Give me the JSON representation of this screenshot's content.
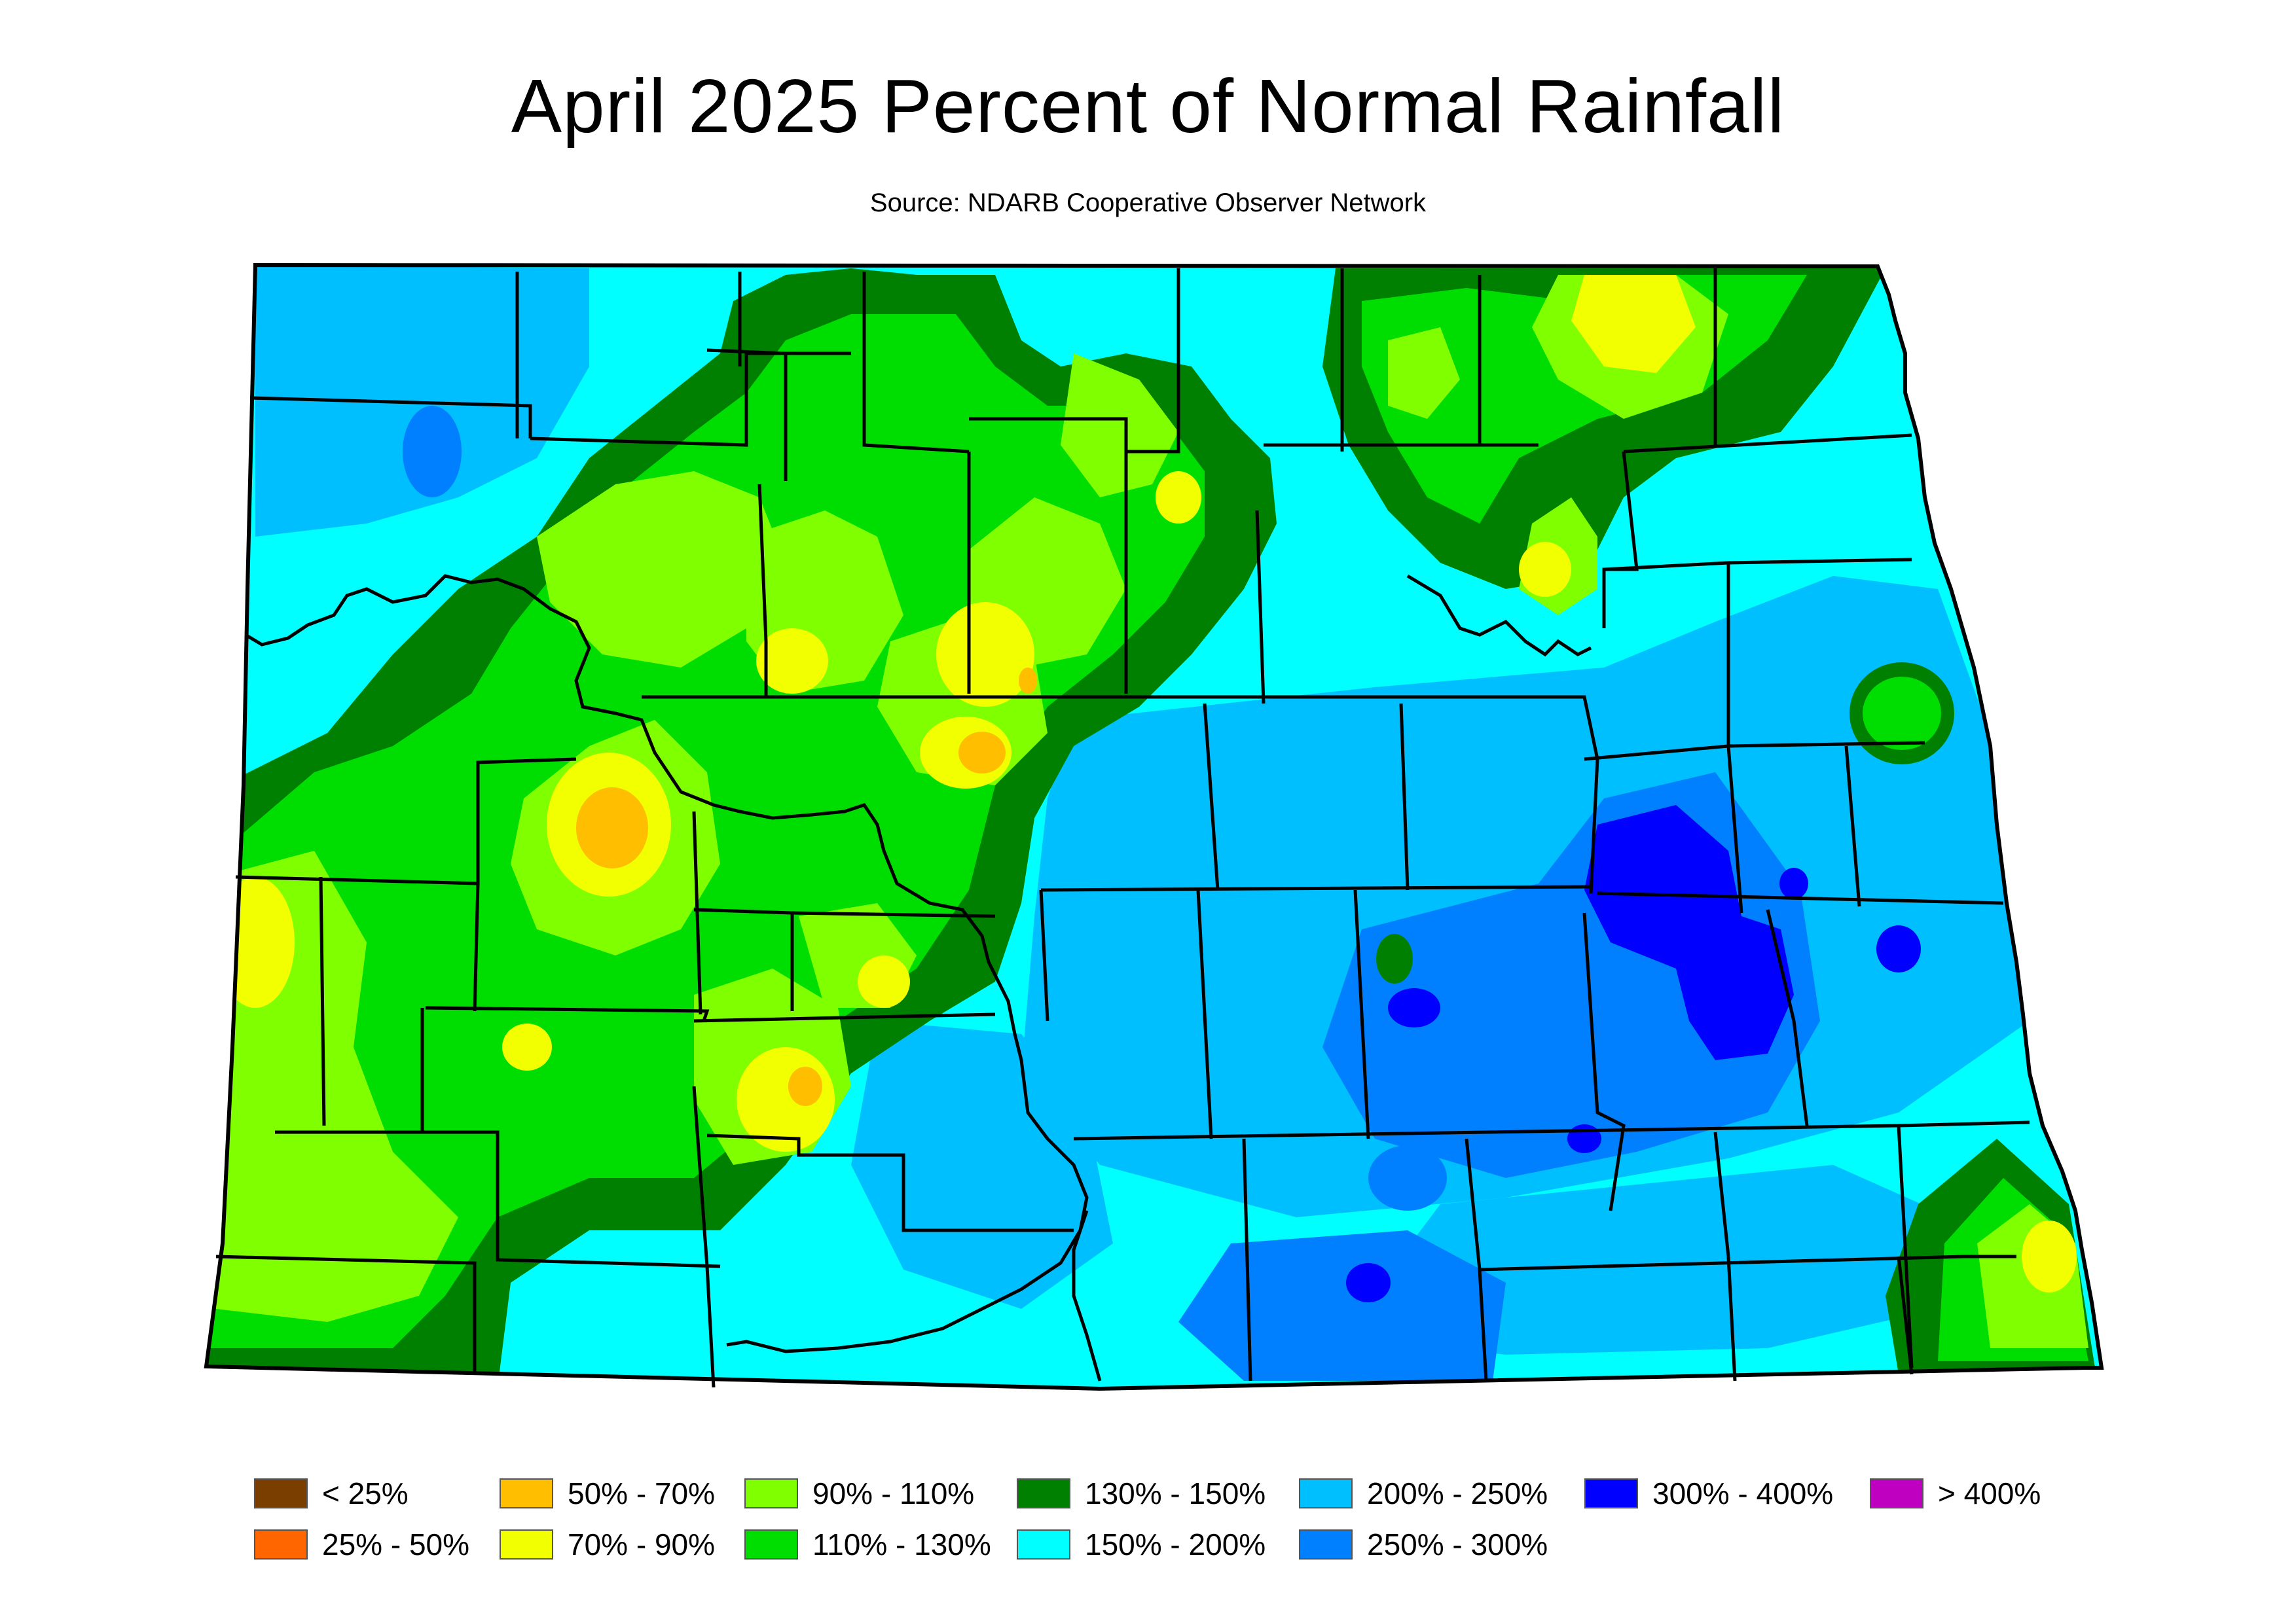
{
  "title": "April 2025 Percent of Normal Rainfall",
  "subtitle": "Source: NDARB Cooperative Observer Network",
  "colors": {
    "pct_lt25": "#7a3e00",
    "pct_25_50": "#ff6600",
    "pct_50_70": "#ffbf00",
    "pct_70_90": "#f2ff00",
    "pct_90_110": "#80ff00",
    "pct_110_130": "#00dd00",
    "pct_130_150": "#008000",
    "pct_150_200": "#00ffff",
    "pct_200_250": "#00bfff",
    "pct_250_300": "#0080ff",
    "pct_300_400": "#0000ff",
    "pct_gt400": "#c000c0"
  },
  "legend": [
    {
      "label": "< 25%",
      "color": "#7a3e00"
    },
    {
      "label": "25% - 50%",
      "color": "#ff6600"
    },
    {
      "label": "50% - 70%",
      "color": "#ffbf00"
    },
    {
      "label": "70% - 90%",
      "color": "#f2ff00"
    },
    {
      "label": "90% - 110%",
      "color": "#80ff00"
    },
    {
      "label": "110% - 130%",
      "color": "#00dd00"
    },
    {
      "label": "130% - 150%",
      "color": "#008000"
    },
    {
      "label": "150% - 200%",
      "color": "#00ffff"
    },
    {
      "label": "200% - 250%",
      "color": "#00bfff"
    },
    {
      "label": "250% - 300%",
      "color": "#0080ff"
    },
    {
      "label": "300% - 400%",
      "color": "#0000ff"
    },
    {
      "label": "> 400%",
      "color": "#c000c0"
    }
  ]
}
